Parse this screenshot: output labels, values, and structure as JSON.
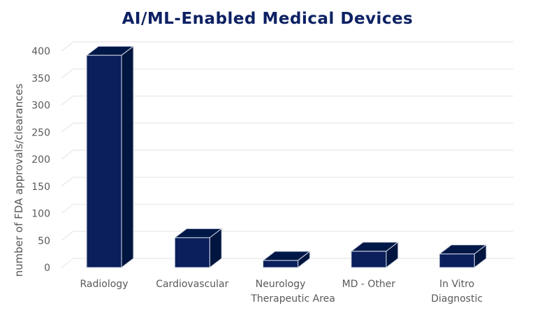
{
  "chart_data": {
    "type": "bar",
    "title": "AI/ML-Enabled Medical Devices",
    "xlabel": "",
    "ylabel": "number of FDA approvals/clearances",
    "categories": [
      [
        "Radiology"
      ],
      [
        "Cardiovascular"
      ],
      [
        "Neurology"
      ],
      [
        "MD - Other"
      ],
      [
        "In Vitro",
        "Diagnostic"
      ]
    ],
    "category_extra": [
      "",
      "",
      "Therapeutic Area",
      "",
      ""
    ],
    "values": [
      392,
      55,
      13,
      30,
      25
    ],
    "ylim": [
      0,
      400
    ],
    "yticks": [
      0,
      50,
      100,
      150,
      200,
      250,
      300,
      350,
      400
    ],
    "grid": true,
    "style": "3d-bar",
    "colors": {
      "front": "#0a1f5c",
      "side": "#00153f",
      "top": "#001848",
      "edge": "#d6dbe6",
      "title": "#0d2163"
    }
  }
}
